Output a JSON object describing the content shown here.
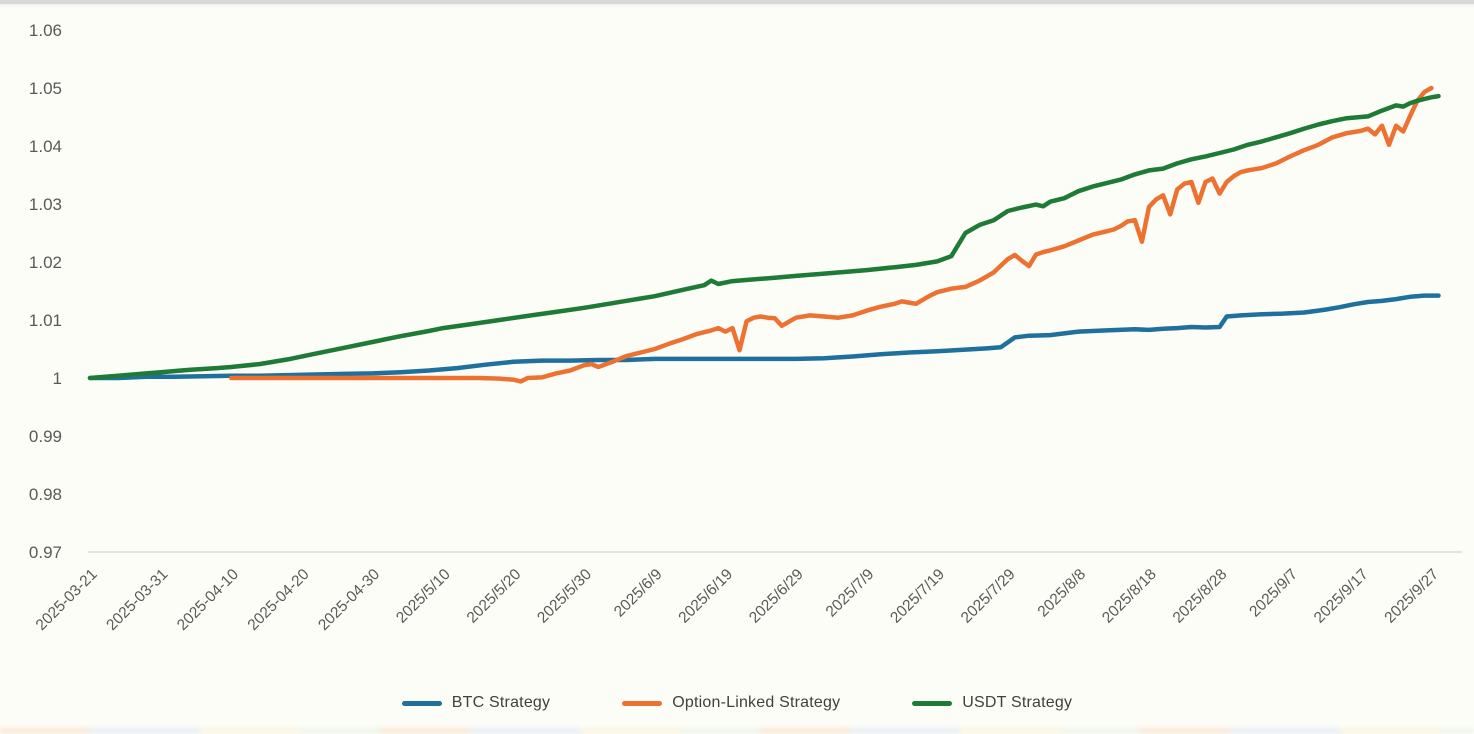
{
  "page": {
    "background_color": "#fdfdf8",
    "top_strip_color": "#d8d8d8",
    "bottom_edge_artifact_colors": [
      "#f6d9c4",
      "#d9e6f2",
      "#f8f0d2",
      "#e4f0e0"
    ]
  },
  "chart_data": {
    "type": "line",
    "title": "",
    "xlabel": "",
    "ylabel": "",
    "grid": "off",
    "axis_line_color": "#d9d9d9",
    "tick_text_color": "#595959",
    "legend": {
      "position": "bottom",
      "text_color": "#404040"
    },
    "x_axis": {
      "start_date": "2025-03-21",
      "tick_interval_days": 10,
      "tick_labels": [
        "2025-03-21",
        "2025-03-31",
        "2025-04-10",
        "2025-04-20",
        "2025-04-30",
        "2025/5/10",
        "2025/5/20",
        "2025/5/30",
        "2025/6/9",
        "2025/6/19",
        "2025/6/29",
        "2025/7/9",
        "2025/7/19",
        "2025/7/29",
        "2025/8/8",
        "2025/8/18",
        "2025/8/28",
        "2025/9/7",
        "2025/9/17",
        "2025/9/27"
      ]
    },
    "y_axis": {
      "min": 0.97,
      "max": 1.06,
      "tick_step": 0.01,
      "ticks": [
        {
          "label": "1.06",
          "value": 1.06
        },
        {
          "label": "1.05",
          "value": 1.05
        },
        {
          "label": "1.04",
          "value": 1.04
        },
        {
          "label": "1.03",
          "value": 1.03
        },
        {
          "label": "1.02",
          "value": 1.02
        },
        {
          "label": "1.01",
          "value": 1.01
        },
        {
          "label": "1",
          "value": 1.0
        },
        {
          "label": "0.99",
          "value": 0.99
        },
        {
          "label": "0.98",
          "value": 0.98
        },
        {
          "label": "0.97",
          "value": 0.97
        }
      ]
    },
    "series": [
      {
        "name": "BTC Strategy",
        "color": "#20709e",
        "points": [
          [
            0,
            1.0
          ],
          [
            4,
            1.0
          ],
          [
            8,
            1.0002
          ],
          [
            12,
            1.0002
          ],
          [
            16,
            1.0003
          ],
          [
            20,
            1.0004
          ],
          [
            24,
            1.0004
          ],
          [
            28,
            1.0005
          ],
          [
            32,
            1.0006
          ],
          [
            36,
            1.0007
          ],
          [
            40,
            1.0008
          ],
          [
            44,
            1.001
          ],
          [
            48,
            1.0013
          ],
          [
            52,
            1.0017
          ],
          [
            56,
            1.0023
          ],
          [
            60,
            1.0028
          ],
          [
            64,
            1.003
          ],
          [
            68,
            1.003
          ],
          [
            72,
            1.0031
          ],
          [
            76,
            1.0031
          ],
          [
            80,
            1.0033
          ],
          [
            85,
            1.0033
          ],
          [
            90,
            1.0033
          ],
          [
            95,
            1.0033
          ],
          [
            100,
            1.0033
          ],
          [
            104,
            1.0034
          ],
          [
            108,
            1.0037
          ],
          [
            112,
            1.0041
          ],
          [
            116,
            1.0044
          ],
          [
            120,
            1.0046
          ],
          [
            124,
            1.0049
          ],
          [
            127,
            1.0051
          ],
          [
            129,
            1.0053
          ],
          [
            131,
            1.007
          ],
          [
            133,
            1.0073
          ],
          [
            136,
            1.0074
          ],
          [
            140,
            1.008
          ],
          [
            144,
            1.0082
          ],
          [
            148,
            1.0084
          ],
          [
            150,
            1.0083
          ],
          [
            152,
            1.0085
          ],
          [
            154,
            1.0086
          ],
          [
            156,
            1.0088
          ],
          [
            158,
            1.0087
          ],
          [
            160,
            1.0088
          ],
          [
            161,
            1.0106
          ],
          [
            163,
            1.0108
          ],
          [
            166,
            1.011
          ],
          [
            169,
            1.0111
          ],
          [
            172,
            1.0113
          ],
          [
            175,
            1.0118
          ],
          [
            177,
            1.0122
          ],
          [
            179,
            1.0127
          ],
          [
            181,
            1.0131
          ],
          [
            183,
            1.0133
          ],
          [
            185,
            1.0136
          ],
          [
            187,
            1.014
          ],
          [
            189,
            1.0142
          ],
          [
            191,
            1.0142
          ]
        ]
      },
      {
        "name": "Option-Linked Strategy",
        "color": "#ed7232",
        "points": [
          [
            20,
            1.0
          ],
          [
            26,
            1.0
          ],
          [
            32,
            1.0
          ],
          [
            38,
            1.0
          ],
          [
            44,
            1.0
          ],
          [
            50,
            1.0
          ],
          [
            55,
            1.0
          ],
          [
            58,
            0.9999
          ],
          [
            60,
            0.9997
          ],
          [
            61,
            0.9994
          ],
          [
            62,
            1.0
          ],
          [
            64,
            1.0001
          ],
          [
            66,
            1.0008
          ],
          [
            68,
            1.0013
          ],
          [
            70,
            1.0022
          ],
          [
            71,
            1.0024
          ],
          [
            72,
            1.0019
          ],
          [
            74,
            1.0028
          ],
          [
            76,
            1.0038
          ],
          [
            78,
            1.0044
          ],
          [
            80,
            1.005
          ],
          [
            82,
            1.0059
          ],
          [
            84,
            1.0067
          ],
          [
            86,
            1.0076
          ],
          [
            88,
            1.0082
          ],
          [
            89,
            1.0086
          ],
          [
            90,
            1.008
          ],
          [
            91,
            1.0086
          ],
          [
            92,
            1.0048
          ],
          [
            93,
            1.0098
          ],
          [
            94,
            1.0104
          ],
          [
            95,
            1.0106
          ],
          [
            96,
            1.0104
          ],
          [
            97,
            1.0103
          ],
          [
            98,
            1.009
          ],
          [
            99,
            1.0097
          ],
          [
            100,
            1.0104
          ],
          [
            102,
            1.0108
          ],
          [
            104,
            1.0106
          ],
          [
            106,
            1.0104
          ],
          [
            108,
            1.0108
          ],
          [
            110,
            1.0116
          ],
          [
            112,
            1.0123
          ],
          [
            114,
            1.0128
          ],
          [
            115,
            1.0132
          ],
          [
            116,
            1.013
          ],
          [
            117,
            1.0128
          ],
          [
            119,
            1.0142
          ],
          [
            120,
            1.0148
          ],
          [
            122,
            1.0154
          ],
          [
            124,
            1.0157
          ],
          [
            126,
            1.0168
          ],
          [
            128,
            1.0182
          ],
          [
            130,
            1.0205
          ],
          [
            131,
            1.0212
          ],
          [
            132,
            1.0202
          ],
          [
            133,
            1.0193
          ],
          [
            134,
            1.0213
          ],
          [
            135,
            1.0217
          ],
          [
            136,
            1.022
          ],
          [
            138,
            1.0227
          ],
          [
            140,
            1.0237
          ],
          [
            142,
            1.0247
          ],
          [
            144,
            1.0253
          ],
          [
            145,
            1.0256
          ],
          [
            146,
            1.0262
          ],
          [
            147,
            1.027
          ],
          [
            148,
            1.0272
          ],
          [
            149,
            1.0235
          ],
          [
            150,
            1.0295
          ],
          [
            151,
            1.0308
          ],
          [
            152,
            1.0315
          ],
          [
            153,
            1.0282
          ],
          [
            154,
            1.0325
          ],
          [
            155,
            1.0335
          ],
          [
            156,
            1.0338
          ],
          [
            157,
            1.0302
          ],
          [
            158,
            1.0338
          ],
          [
            159,
            1.0344
          ],
          [
            160,
            1.0318
          ],
          [
            161,
            1.0338
          ],
          [
            162,
            1.0348
          ],
          [
            163,
            1.0355
          ],
          [
            164,
            1.0358
          ],
          [
            165,
            1.036
          ],
          [
            166,
            1.0362
          ],
          [
            168,
            1.037
          ],
          [
            170,
            1.0382
          ],
          [
            172,
            1.0393
          ],
          [
            174,
            1.0402
          ],
          [
            176,
            1.0415
          ],
          [
            178,
            1.0422
          ],
          [
            180,
            1.0426
          ],
          [
            181,
            1.043
          ],
          [
            182,
            1.042
          ],
          [
            183,
            1.0435
          ],
          [
            184,
            1.0402
          ],
          [
            185,
            1.0435
          ],
          [
            186,
            1.0425
          ],
          [
            187,
            1.0452
          ],
          [
            188,
            1.0478
          ],
          [
            189,
            1.0493
          ],
          [
            190,
            1.05
          ]
        ]
      },
      {
        "name": "USDT Strategy",
        "color": "#1e7b36",
        "points": [
          [
            0,
            1.0
          ],
          [
            4,
            1.0004
          ],
          [
            8,
            1.0008
          ],
          [
            10,
            1.001
          ],
          [
            14,
            1.0014
          ],
          [
            18,
            1.0017
          ],
          [
            20,
            1.0019
          ],
          [
            24,
            1.0024
          ],
          [
            28,
            1.0032
          ],
          [
            32,
            1.0042
          ],
          [
            36,
            1.0052
          ],
          [
            40,
            1.0062
          ],
          [
            44,
            1.0072
          ],
          [
            48,
            1.0081
          ],
          [
            50,
            1.0086
          ],
          [
            54,
            1.0093
          ],
          [
            58,
            1.01
          ],
          [
            62,
            1.0107
          ],
          [
            66,
            1.0114
          ],
          [
            70,
            1.0121
          ],
          [
            74,
            1.0129
          ],
          [
            78,
            1.0137
          ],
          [
            80,
            1.0141
          ],
          [
            84,
            1.0152
          ],
          [
            87,
            1.016
          ],
          [
            88,
            1.0168
          ],
          [
            89,
            1.0162
          ],
          [
            91,
            1.0167
          ],
          [
            94,
            1.017
          ],
          [
            97,
            1.0173
          ],
          [
            100,
            1.0176
          ],
          [
            104,
            1.018
          ],
          [
            107,
            1.0183
          ],
          [
            110,
            1.0186
          ],
          [
            114,
            1.0191
          ],
          [
            117,
            1.0195
          ],
          [
            120,
            1.0201
          ],
          [
            122,
            1.021
          ],
          [
            124,
            1.025
          ],
          [
            126,
            1.0264
          ],
          [
            128,
            1.0272
          ],
          [
            130,
            1.0288
          ],
          [
            132,
            1.0294
          ],
          [
            134,
            1.0299
          ],
          [
            135,
            1.0296
          ],
          [
            136,
            1.0304
          ],
          [
            138,
            1.031
          ],
          [
            140,
            1.0322
          ],
          [
            142,
            1.033
          ],
          [
            144,
            1.0336
          ],
          [
            146,
            1.0342
          ],
          [
            148,
            1.0351
          ],
          [
            150,
            1.0358
          ],
          [
            152,
            1.0361
          ],
          [
            154,
            1.037
          ],
          [
            156,
            1.0377
          ],
          [
            158,
            1.0382
          ],
          [
            160,
            1.0388
          ],
          [
            162,
            1.0394
          ],
          [
            164,
            1.0402
          ],
          [
            166,
            1.0408
          ],
          [
            168,
            1.0415
          ],
          [
            170,
            1.0422
          ],
          [
            172,
            1.043
          ],
          [
            174,
            1.0437
          ],
          [
            176,
            1.0443
          ],
          [
            178,
            1.0448
          ],
          [
            180,
            1.045
          ],
          [
            181,
            1.0451
          ],
          [
            183,
            1.0461
          ],
          [
            185,
            1.047
          ],
          [
            186,
            1.0468
          ],
          [
            187,
            1.0474
          ],
          [
            188,
            1.0478
          ],
          [
            189,
            1.0481
          ],
          [
            190,
            1.0484
          ],
          [
            191,
            1.0486
          ]
        ]
      }
    ]
  }
}
